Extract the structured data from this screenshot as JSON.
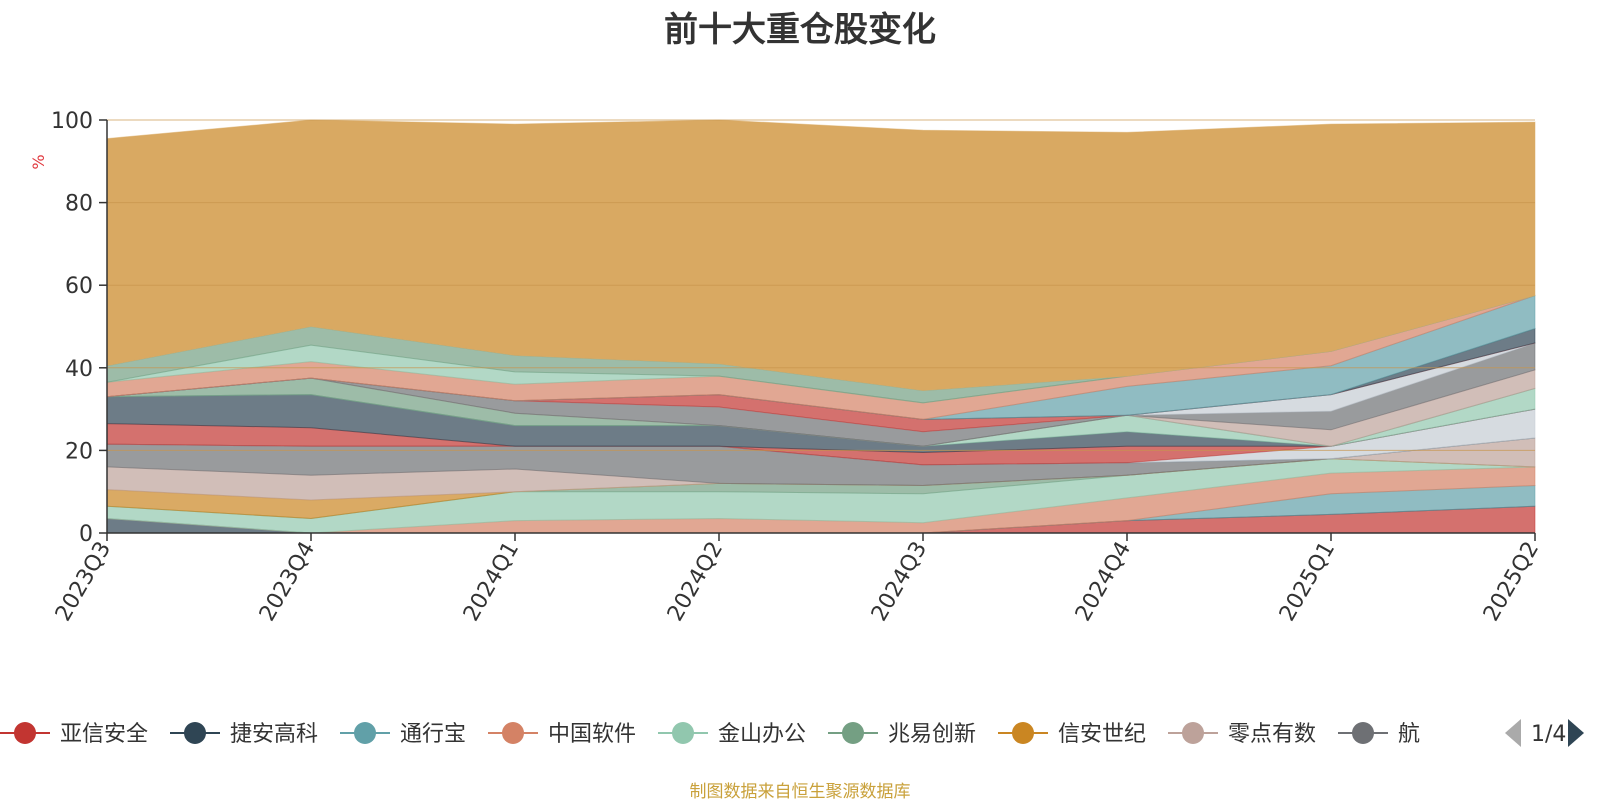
{
  "title": "前十大重仓股变化",
  "footer": "制图数据来自恒生聚源数据库",
  "colors": {
    "background_area": "#d9a962",
    "axis": "#333333",
    "grid": "#c7954d",
    "ylabel": "#e0383e",
    "pager_active": "#2f4554",
    "pager_inactive": "#aaaaaa"
  },
  "legend": {
    "page": "1/4",
    "items": [
      {
        "label": "亚信安全",
        "color": "#c23531"
      },
      {
        "label": "捷安高科",
        "color": "#2f4554"
      },
      {
        "label": "通行宝",
        "color": "#61a0a8"
      },
      {
        "label": "中国软件",
        "color": "#d48265"
      },
      {
        "label": "金山办公",
        "color": "#91c7ae"
      },
      {
        "label": "兆易创新",
        "color": "#749f83"
      },
      {
        "label": "信安世纪",
        "color": "#ca8622"
      },
      {
        "label": "零点有数",
        "color": "#bda29a"
      },
      {
        "label": "航",
        "color": "#6e7074"
      }
    ]
  },
  "chart_data": {
    "type": "area",
    "stacked": true,
    "ylabel": "%",
    "ylim": [
      0,
      100
    ],
    "yticks": [
      0,
      20,
      40,
      60,
      80,
      100
    ],
    "categories": [
      "2023Q3",
      "2023Q4",
      "2024Q1",
      "2024Q2",
      "2024Q3",
      "2024Q4",
      "2025Q1",
      "2025Q2"
    ],
    "series": [
      {
        "color": "#c23531",
        "values": [
          0,
          0,
          0,
          0,
          0,
          3,
          4.5,
          6.5
        ]
      },
      {
        "color": "#2f4554",
        "values": [
          3.5,
          0,
          0,
          0,
          0,
          0,
          0,
          0
        ]
      },
      {
        "color": "#61a0a8",
        "values": [
          0,
          0,
          0,
          0,
          0,
          0,
          5,
          5
        ]
      },
      {
        "color": "#d48265",
        "values": [
          0,
          0,
          3,
          3.5,
          2.5,
          5.5,
          5,
          4.5
        ]
      },
      {
        "color": "#91c7ae",
        "values": [
          3,
          3.5,
          7,
          6.5,
          7,
          5.5,
          3.5,
          0
        ]
      },
      {
        "color": "#749f83",
        "values": [
          0,
          0,
          0,
          2,
          2,
          0,
          0,
          0
        ]
      },
      {
        "color": "#ca8622",
        "values": [
          4,
          4.5,
          0,
          0,
          0,
          0,
          0,
          0
        ]
      },
      {
        "color": "#bda29a",
        "values": [
          5.5,
          6,
          5.5,
          0,
          0,
          0,
          0,
          7
        ]
      },
      {
        "color": "#6e7074",
        "values": [
          5.5,
          7,
          5.5,
          9,
          5,
          3,
          0,
          0
        ]
      },
      {
        "color": "#546570",
        "values": [
          0,
          0,
          0,
          0,
          0,
          0,
          0,
          0
        ]
      },
      {
        "color": "#c4ccd3",
        "values": [
          0,
          0,
          0,
          0,
          0,
          0,
          3,
          7
        ]
      },
      {
        "color": "#c23531",
        "values": [
          5,
          4.5,
          0,
          0,
          3,
          4,
          0,
          0
        ]
      },
      {
        "color": "#2f4554",
        "values": [
          6.5,
          8,
          5,
          5,
          1.5,
          3.5,
          0,
          0
        ]
      },
      {
        "color": "#91c7ae",
        "values": [
          0,
          0,
          0,
          0,
          0,
          4,
          0,
          5
        ]
      },
      {
        "color": "#749f83",
        "values": [
          0,
          4,
          3,
          0,
          0,
          0,
          0,
          0
        ]
      },
      {
        "color": "#bda29a",
        "values": [
          0,
          0,
          0,
          0,
          0,
          0,
          4,
          4.5
        ]
      },
      {
        "color": "#6e7074",
        "values": [
          0,
          0,
          3,
          4.5,
          3.5,
          0,
          4.5,
          6.5
        ]
      },
      {
        "color": "#c4ccd3",
        "values": [
          0,
          0,
          0,
          0,
          0,
          0,
          4,
          0
        ]
      },
      {
        "color": "#c23531",
        "values": [
          0,
          0,
          0,
          3,
          3,
          0,
          0,
          0
        ]
      },
      {
        "color": "#2f4554",
        "values": [
          0,
          0,
          0,
          0,
          0,
          0,
          0,
          3.5
        ]
      },
      {
        "color": "#61a0a8",
        "values": [
          0,
          0,
          0,
          0,
          0,
          7,
          7,
          8
        ]
      },
      {
        "color": "#d48265",
        "values": [
          3.5,
          4,
          4,
          4.5,
          4,
          2.5,
          3.5,
          0
        ]
      },
      {
        "color": "#91c7ae",
        "values": [
          0,
          4,
          3,
          0,
          0,
          0,
          0,
          0
        ]
      },
      {
        "color": "#749f83",
        "values": [
          4,
          4.5,
          4,
          3,
          3,
          0,
          0,
          0
        ]
      },
      {
        "color": "#d9a962",
        "values": [
          55,
          50,
          56,
          59,
          63,
          59,
          55,
          42
        ]
      }
    ]
  }
}
